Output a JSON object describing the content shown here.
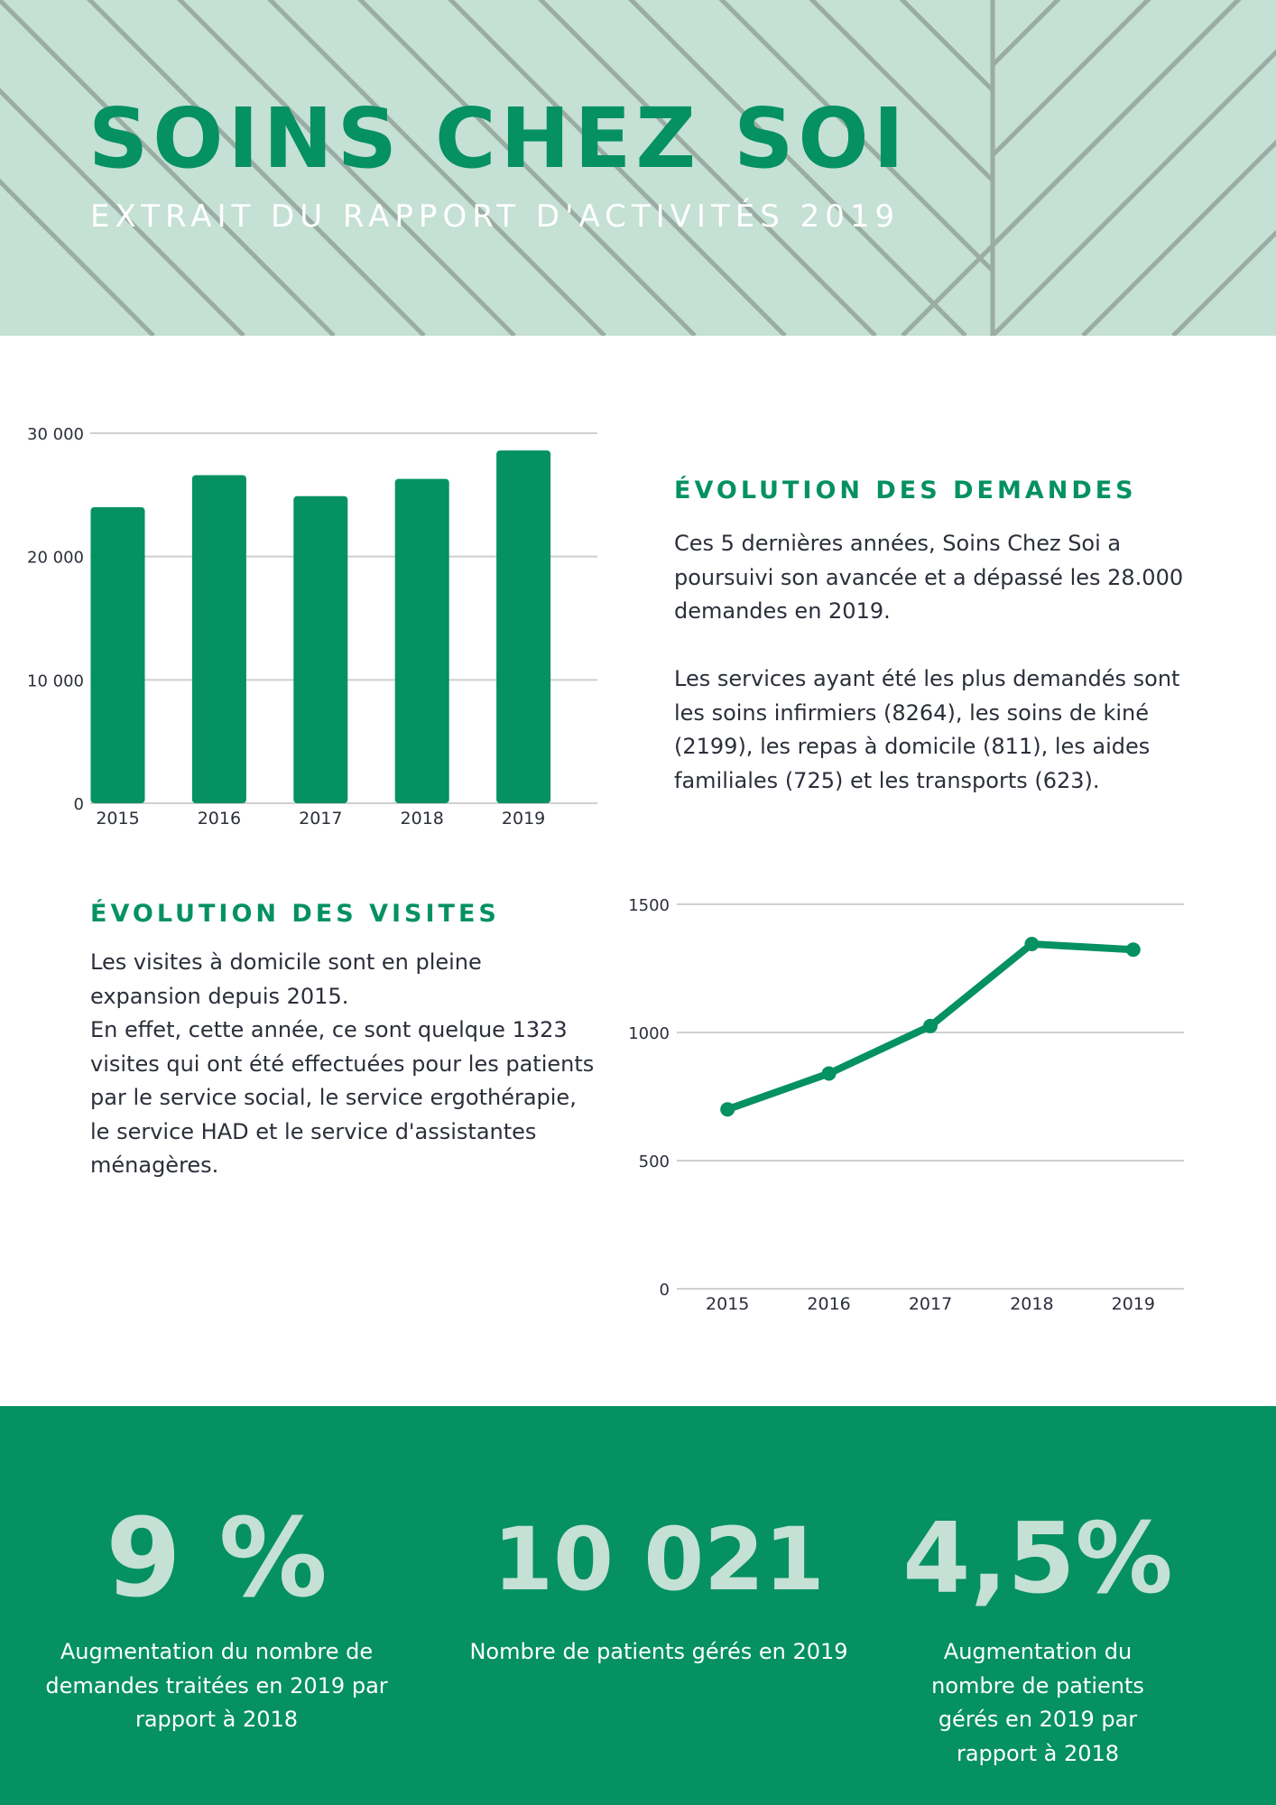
{
  "header": {
    "title": "SOINS CHEZ SOI",
    "subtitle": "EXTRAIT DU RAPPORT D'ACTIVITÉS 2019"
  },
  "requests": {
    "heading": "ÉVOLUTION DES DEMANDES",
    "paragraph_1": "Ces 5 dernières années, Soins Chez Soi a poursuivi son avancée et a dépassé les 28.000 demandes en 2019.",
    "paragraph_2": "Les services ayant été les plus demandés sont les soins infirmiers (8264), les soins de kiné (2199), les repas à domicile (811), les aides familiales (725) et les transports (623)."
  },
  "visits": {
    "heading": "ÉVOLUTION DES VISITES",
    "paragraph_1": "Les visites à domicile sont en pleine expansion depuis 2015.",
    "paragraph_2": "En effet, cette année, ce sont quelque 1323 visites qui ont été effectuées pour les patients par le service social, le service ergothérapie, le service HAD et le service d'assistantes ménagères."
  },
  "colors": {
    "accent": "#059162",
    "light_green": "#c5e0d5",
    "text": "#2b2f3a",
    "grid": "#cfcfcf"
  },
  "chart_data": [
    {
      "type": "bar",
      "categories": [
        "2015",
        "2016",
        "2017",
        "2018",
        "2019"
      ],
      "values": [
        24000,
        26600,
        24900,
        26300,
        28600
      ],
      "ylim": [
        0,
        30000
      ],
      "yticks": [
        0,
        10000,
        20000,
        30000
      ],
      "ytick_labels": [
        "0",
        "10 000",
        "20 000",
        "30 000"
      ],
      "grid": true,
      "color": "#059162"
    },
    {
      "type": "line",
      "categories": [
        "2015",
        "2016",
        "2017",
        "2018",
        "2019"
      ],
      "values": [
        700,
        840,
        1025,
        1345,
        1323
      ],
      "ylim": [
        0,
        1500
      ],
      "yticks": [
        0,
        500,
        1000,
        1500
      ],
      "ytick_labels": [
        "0",
        "500",
        "1000",
        "1500"
      ],
      "grid": true,
      "color": "#059162"
    }
  ],
  "stats": [
    {
      "value": "9 %",
      "label": "Augmentation du nombre de demandes traitées en 2019 par rapport à 2018"
    },
    {
      "value": "10 021",
      "label": "Nombre de patients gérés en 2019"
    },
    {
      "value": "4,5%",
      "label": "Augmentation du nombre de patients gérés  en 2019 par rapport à 2018"
    }
  ]
}
